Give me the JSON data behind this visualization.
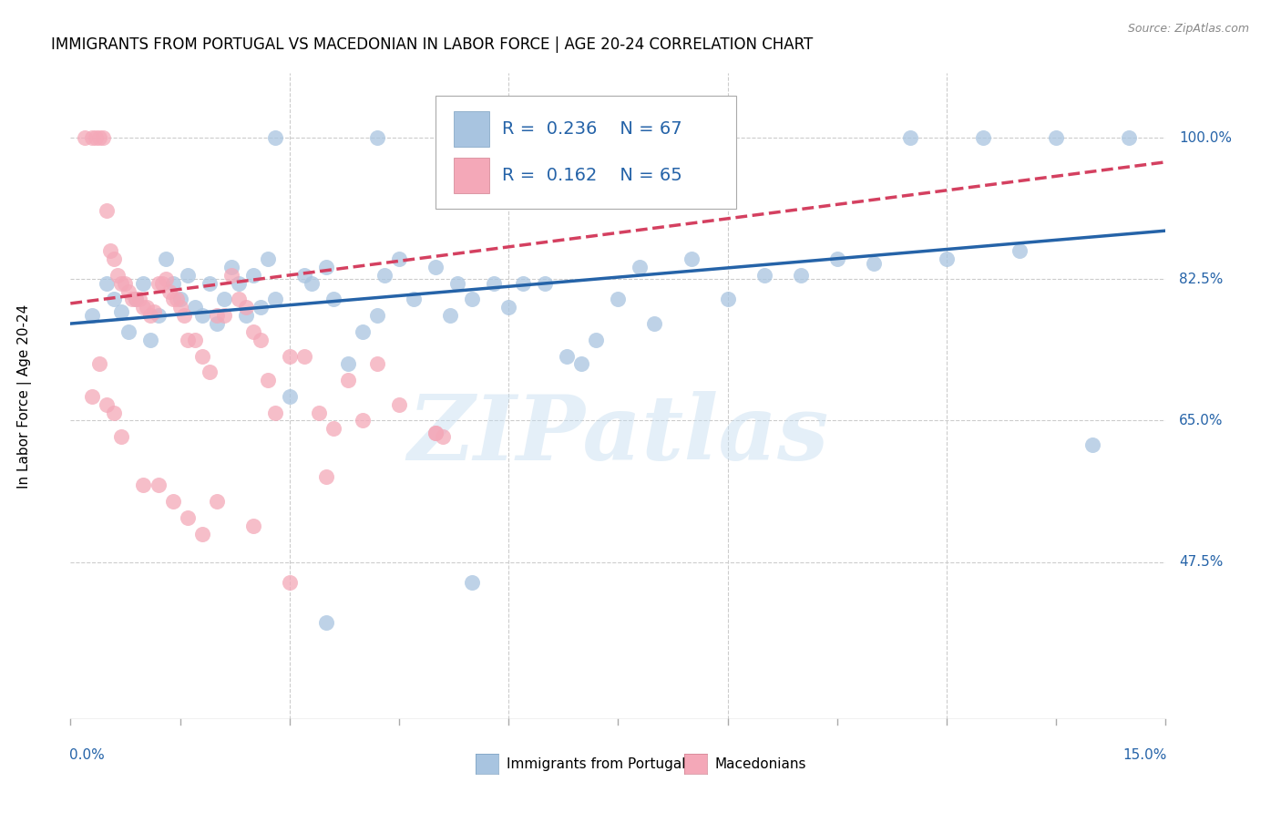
{
  "title": "IMMIGRANTS FROM PORTUGAL VS MACEDONIAN IN LABOR FORCE | AGE 20-24 CORRELATION CHART",
  "source": "Source: ZipAtlas.com",
  "ylabel": "In Labor Force | Age 20-24",
  "xlim": [
    0.0,
    15.0
  ],
  "ylim": [
    28.0,
    108.0
  ],
  "yticks": [
    47.5,
    65.0,
    82.5,
    100.0
  ],
  "ytick_labels": [
    "47.5%",
    "65.0%",
    "82.5%",
    "100.0%"
  ],
  "watermark": "ZIPatlas",
  "legend_R_blue": "R = 0.236",
  "legend_N_blue": "N = 67",
  "legend_R_pink": "R = 0.162",
  "legend_N_pink": "N = 65",
  "legend_label_blue": "Immigrants from Portugal",
  "legend_label_pink": "Macedonians",
  "blue_scatter_color": "#a8c4e0",
  "pink_scatter_color": "#f4a8b8",
  "blue_line_color": "#2563a8",
  "pink_line_color": "#d44060",
  "blue_trend_x": [
    0.0,
    15.0
  ],
  "blue_trend_y": [
    77.0,
    88.5
  ],
  "pink_trend_x": [
    0.0,
    15.0
  ],
  "pink_trend_y": [
    79.5,
    97.0
  ],
  "blue_x": [
    0.3,
    0.5,
    0.6,
    0.7,
    0.8,
    0.9,
    1.0,
    1.1,
    1.2,
    1.3,
    1.4,
    1.5,
    1.6,
    1.7,
    1.8,
    1.9,
    2.0,
    2.1,
    2.2,
    2.3,
    2.4,
    2.5,
    2.6,
    2.7,
    2.8,
    3.0,
    3.2,
    3.3,
    3.5,
    3.6,
    3.8,
    4.0,
    4.2,
    4.3,
    4.5,
    4.7,
    5.0,
    5.2,
    5.3,
    5.5,
    5.8,
    6.0,
    6.2,
    6.5,
    6.8,
    7.0,
    7.2,
    7.5,
    7.8,
    8.0,
    8.5,
    9.0,
    9.5,
    10.0,
    10.5,
    11.0,
    11.5,
    12.0,
    12.5,
    13.0,
    13.5,
    14.0,
    14.5,
    3.5,
    5.5,
    2.8,
    4.2
  ],
  "blue_y": [
    78.0,
    82.0,
    80.0,
    78.5,
    76.0,
    80.0,
    82.0,
    75.0,
    78.0,
    85.0,
    82.0,
    80.0,
    83.0,
    79.0,
    78.0,
    82.0,
    77.0,
    80.0,
    84.0,
    82.0,
    78.0,
    83.0,
    79.0,
    85.0,
    80.0,
    68.0,
    83.0,
    82.0,
    84.0,
    80.0,
    72.0,
    76.0,
    78.0,
    83.0,
    85.0,
    80.0,
    84.0,
    78.0,
    82.0,
    80.0,
    82.0,
    79.0,
    82.0,
    82.0,
    73.0,
    72.0,
    75.0,
    80.0,
    84.0,
    77.0,
    85.0,
    80.0,
    83.0,
    83.0,
    85.0,
    84.5,
    100.0,
    85.0,
    100.0,
    86.0,
    100.0,
    62.0,
    100.0,
    40.0,
    45.0,
    100.0,
    100.0
  ],
  "pink_x": [
    0.2,
    0.3,
    0.35,
    0.4,
    0.45,
    0.5,
    0.55,
    0.6,
    0.65,
    0.7,
    0.75,
    0.8,
    0.85,
    0.9,
    0.95,
    1.0,
    1.05,
    1.1,
    1.15,
    1.2,
    1.25,
    1.3,
    1.35,
    1.4,
    1.45,
    1.5,
    1.55,
    1.6,
    1.7,
    1.8,
    1.9,
    2.0,
    2.1,
    2.2,
    2.3,
    2.4,
    2.5,
    2.6,
    2.7,
    2.8,
    3.0,
    3.2,
    3.4,
    3.6,
    3.8,
    4.0,
    4.2,
    4.5,
    5.0,
    5.1,
    0.3,
    0.4,
    0.5,
    0.6,
    0.7,
    1.0,
    1.2,
    1.4,
    1.6,
    1.8,
    2.0,
    2.5,
    3.0,
    3.5,
    5.0
  ],
  "pink_y": [
    100.0,
    100.0,
    100.0,
    100.0,
    100.0,
    91.0,
    86.0,
    85.0,
    83.0,
    82.0,
    82.0,
    81.0,
    80.0,
    80.0,
    80.0,
    79.0,
    79.0,
    78.0,
    78.5,
    82.0,
    82.0,
    82.5,
    81.0,
    80.0,
    80.0,
    79.0,
    78.0,
    75.0,
    75.0,
    73.0,
    71.0,
    78.0,
    78.0,
    83.0,
    80.0,
    79.0,
    76.0,
    75.0,
    70.0,
    66.0,
    73.0,
    73.0,
    66.0,
    64.0,
    70.0,
    65.0,
    72.0,
    67.0,
    63.5,
    63.0,
    68.0,
    72.0,
    67.0,
    66.0,
    63.0,
    57.0,
    57.0,
    55.0,
    53.0,
    51.0,
    55.0,
    52.0,
    45.0,
    58.0,
    63.5
  ],
  "grid_color": "#cccccc",
  "background_color": "#ffffff",
  "title_fontsize": 12,
  "tick_color": "#2563a8"
}
